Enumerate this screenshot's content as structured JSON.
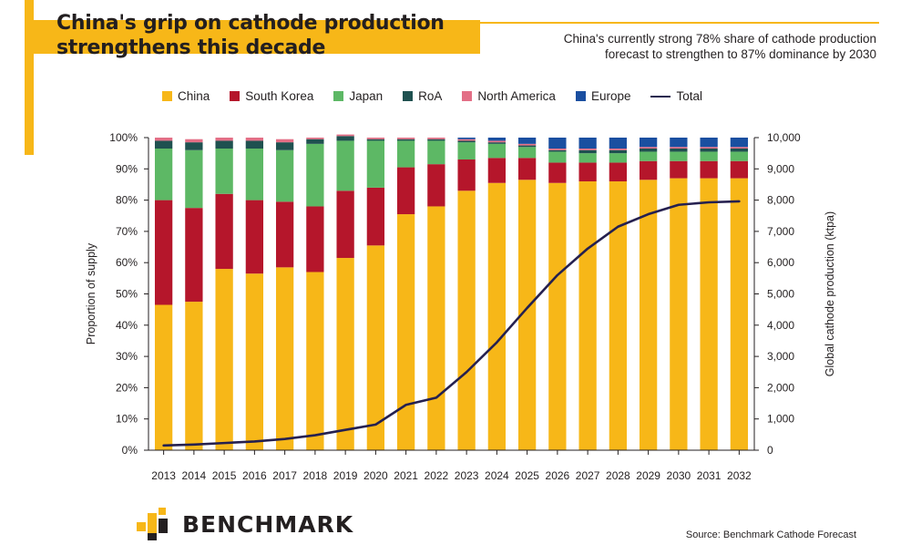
{
  "header": {
    "title_line1": "China's grip on cathode production",
    "title_line2": "strengthens this decade",
    "subtitle_line1": "China's currently strong 78% share of cathode production",
    "subtitle_line2": "forecast to strengthen to 87% dominance by 2030"
  },
  "colors": {
    "accent": "#f7b718",
    "china": "#f7b718",
    "south_korea": "#b5162b",
    "japan": "#5db865",
    "roa": "#1f5150",
    "north_america": "#e36f86",
    "europe": "#1a4fa0",
    "total": "#25204f"
  },
  "legend": [
    {
      "label": "China",
      "color": "#f7b718",
      "kind": "box"
    },
    {
      "label": "South Korea",
      "color": "#b5162b",
      "kind": "box"
    },
    {
      "label": "Japan",
      "color": "#5db865",
      "kind": "box"
    },
    {
      "label": "RoA",
      "color": "#1f5150",
      "kind": "box"
    },
    {
      "label": "North America",
      "color": "#e36f86",
      "kind": "box"
    },
    {
      "label": "Europe",
      "color": "#1a4fa0",
      "kind": "box"
    },
    {
      "label": "Total",
      "color": "#25204f",
      "kind": "line"
    }
  ],
  "chart_data": {
    "type": "bar",
    "stacked": true,
    "categories": [
      "2013",
      "2014",
      "2015",
      "2016",
      "2017",
      "2018",
      "2019",
      "2020",
      "2021",
      "2022",
      "2023",
      "2024",
      "2025",
      "2026",
      "2027",
      "2028",
      "2029",
      "2030",
      "2031",
      "2032"
    ],
    "series": [
      {
        "name": "China",
        "values": [
          46.5,
          47.5,
          58,
          56.5,
          58.5,
          57,
          61.5,
          65.5,
          75.5,
          78,
          83,
          85.5,
          86.5,
          85.5,
          86,
          86,
          86.5,
          87,
          87,
          87
        ]
      },
      {
        "name": "South Korea",
        "values": [
          33.5,
          30,
          24,
          23.5,
          21,
          21,
          21.5,
          18.5,
          15,
          13.5,
          10,
          8,
          7,
          6.5,
          6,
          6,
          6,
          5.5,
          5.5,
          5.5
        ]
      },
      {
        "name": "Japan",
        "values": [
          16.5,
          18.5,
          14.5,
          16.5,
          16.5,
          20,
          16,
          15,
          8.5,
          7.5,
          5.5,
          4.5,
          3.5,
          3.5,
          3,
          3,
          3,
          3,
          3,
          3
        ]
      },
      {
        "name": "RoA",
        "values": [
          2.5,
          2.5,
          2.5,
          2.5,
          2.5,
          1.5,
          1.5,
          0.5,
          0.5,
          0.5,
          0.5,
          0.5,
          0.5,
          0.5,
          1,
          1,
          1,
          1,
          1,
          1
        ]
      },
      {
        "name": "North America",
        "values": [
          1,
          1,
          1,
          1,
          1,
          0.5,
          0.5,
          0.5,
          0.5,
          0.5,
          0.5,
          0.5,
          0.5,
          0.5,
          0.5,
          0.5,
          0.5,
          0.5,
          0.5,
          0.5
        ]
      },
      {
        "name": "Europe",
        "values": [
          0,
          0,
          0,
          0,
          0,
          0,
          0,
          0,
          0,
          0,
          0.5,
          1,
          2,
          3.5,
          3.5,
          3.5,
          3,
          3,
          3,
          3
        ]
      }
    ],
    "line": {
      "name": "Total",
      "axis": "right",
      "values": [
        150,
        180,
        230,
        280,
        360,
        480,
        650,
        820,
        1450,
        1680,
        2500,
        3450,
        4550,
        5600,
        6450,
        7150,
        7550,
        7850,
        7930,
        7960
      ]
    },
    "ylabel_left": "Proportion of supply",
    "ylabel_right": "Global cathode production (ktpa)",
    "y_left_ticks": [
      "0%",
      "10%",
      "20%",
      "30%",
      "40%",
      "50%",
      "60%",
      "70%",
      "80%",
      "90%",
      "100%"
    ],
    "y_right_ticks": [
      "0",
      "1,000",
      "2,000",
      "3,000",
      "4,000",
      "5,000",
      "6,000",
      "7,000",
      "8,000",
      "9,000",
      "10,000"
    ],
    "ylim_left": [
      0,
      100
    ],
    "ylim_right": [
      0,
      10000
    ],
    "grid": false,
    "legend_position": "top"
  },
  "footer": {
    "brand": "BENCHMARK",
    "source": "Source: Benchmark Cathode Forecast"
  }
}
